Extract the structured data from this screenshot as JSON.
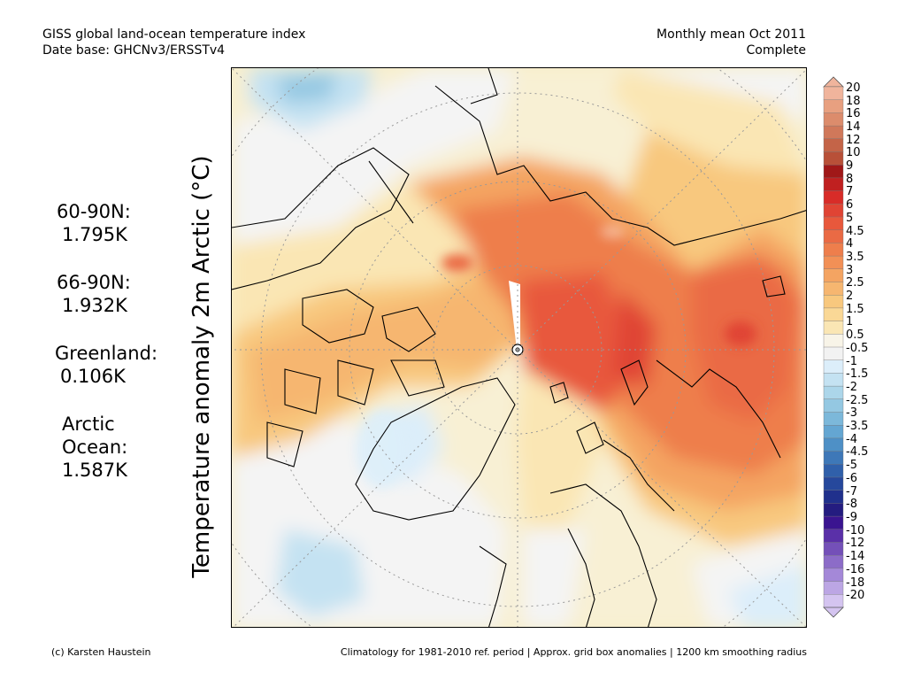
{
  "header": {
    "left_line1": "GISS global land-ocean temperature index",
    "left_line2": "Date base: GHCNv3/ERSSTv4",
    "right_line1": "Monthly mean Oct 2011",
    "right_line2": "Complete"
  },
  "ylabel": "Temperature anomaly 2m Arctic (°C)",
  "stats": [
    {
      "name": "60-90N:",
      "value": "1.795K"
    },
    {
      "name": "66-90N:",
      "value": "1.932K"
    },
    {
      "name": "Greenland:",
      "value": "0.106K"
    },
    {
      "name": "Arctic\nOcean:",
      "value": "1.587K"
    }
  ],
  "colorbar": {
    "levels": [
      "20",
      "18",
      "16",
      "14",
      "12",
      "10",
      "9",
      "8",
      "7",
      "6",
      "5",
      "4.5",
      "4",
      "3.5",
      "3",
      "2.5",
      "2",
      "1.5",
      "1",
      "0.5",
      "-0.5",
      "-1",
      "-1.5",
      "-2",
      "-2.5",
      "-3",
      "-3.5",
      "-4",
      "-4.5",
      "-5",
      "-6",
      "-7",
      "-8",
      "-9",
      "-10",
      "-12",
      "-14",
      "-16",
      "-18",
      "-20"
    ],
    "colors": [
      "#f0b49c",
      "#e8a080",
      "#dc8c6c",
      "#d0785a",
      "#c46448",
      "#b85038",
      "#a01818",
      "#c02020",
      "#d82c28",
      "#e04434",
      "#e8583c",
      "#ea6a44",
      "#ee7e4c",
      "#f29056",
      "#f4a462",
      "#f6b670",
      "#f8c87e",
      "#fad896",
      "#fae6b4",
      "#f8f4e8",
      "#f2f2f2",
      "#dceefa",
      "#c4e2f2",
      "#acd6ea",
      "#94c8e2",
      "#7cb8da",
      "#64a6d2",
      "#4e90c6",
      "#3e78b8",
      "#3060aa",
      "#26489c",
      "#20308c",
      "#241c80",
      "#3a1490",
      "#5a30a8",
      "#7450b8",
      "#8c6cc8",
      "#a488d8",
      "#bca6e4",
      "#d4c4f0"
    ]
  },
  "footer": {
    "left": "(c) Karsten Haustein",
    "right": "Climatology for 1981-2010 ref. period | Approx. grid box anomalies | 1200 km smoothing radius"
  }
}
